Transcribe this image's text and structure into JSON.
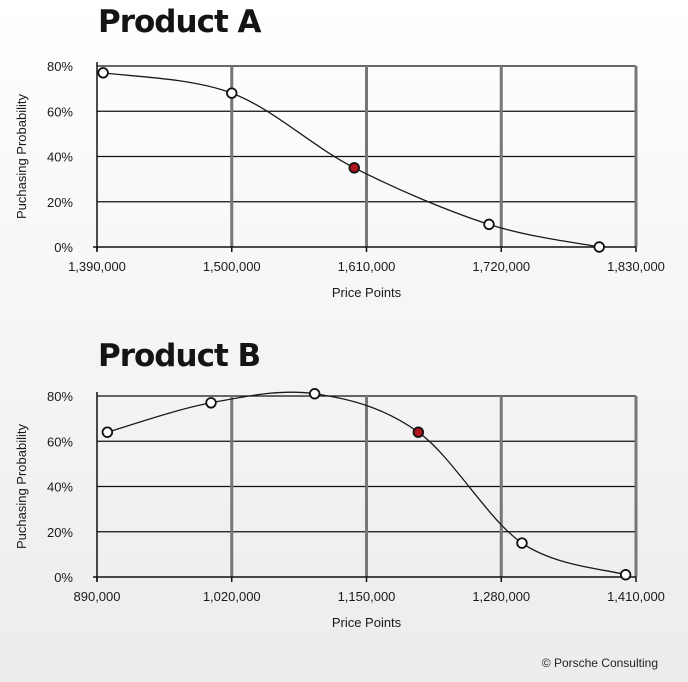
{
  "charts": [
    {
      "title": "Product A"
    },
    {
      "title": "Product B"
    }
  ],
  "chart_data": [
    {
      "type": "line",
      "title": "Product A",
      "xlabel": "Price Points",
      "ylabel": "Puchasing Probability",
      "x_ticks": [
        1390000,
        1500000,
        1610000,
        1720000,
        1830000
      ],
      "x_tick_labels": [
        "1,390,000",
        "1,500,000",
        "1,610,000",
        "1,720,000",
        "1,830,000"
      ],
      "y_ticks": [
        0,
        20,
        40,
        60,
        80
      ],
      "y_tick_labels": [
        "0%",
        "20%",
        "40%",
        "60%",
        "80%"
      ],
      "xlim": [
        1390000,
        1830000
      ],
      "ylim": [
        0,
        80
      ],
      "grid": true,
      "points": [
        {
          "x": 1395000,
          "y": 77,
          "highlight": false
        },
        {
          "x": 1500000,
          "y": 68,
          "highlight": false
        },
        {
          "x": 1600000,
          "y": 35,
          "highlight": true
        },
        {
          "x": 1710000,
          "y": 10,
          "highlight": false
        },
        {
          "x": 1800000,
          "y": 0,
          "highlight": false
        }
      ],
      "colors": {
        "line": "#1a1a1a",
        "marker_fill": "#ffffff",
        "highlight_fill": "#b0151f",
        "grid": "#777777"
      }
    },
    {
      "type": "line",
      "title": "Product B",
      "xlabel": "Price Points",
      "ylabel": "Puchasing Probability",
      "x_ticks": [
        890000,
        1020000,
        1150000,
        1280000,
        1410000
      ],
      "x_tick_labels": [
        "890,000",
        "1,020,000",
        "1,150,000",
        "1,280,000",
        "1,410,000"
      ],
      "y_ticks": [
        0,
        20,
        40,
        60,
        80
      ],
      "y_tick_labels": [
        "0%",
        "20%",
        "40%",
        "60%",
        "80%"
      ],
      "xlim": [
        890000,
        1410000
      ],
      "ylim": [
        0,
        80
      ],
      "grid": true,
      "points": [
        {
          "x": 900000,
          "y": 64,
          "highlight": false
        },
        {
          "x": 1000000,
          "y": 77,
          "highlight": false
        },
        {
          "x": 1100000,
          "y": 81,
          "highlight": false
        },
        {
          "x": 1200000,
          "y": 64,
          "highlight": true
        },
        {
          "x": 1300000,
          "y": 15,
          "highlight": false
        },
        {
          "x": 1400000,
          "y": 1,
          "highlight": false
        }
      ],
      "colors": {
        "line": "#1a1a1a",
        "marker_fill": "#ffffff",
        "highlight_fill": "#b0151f",
        "grid": "#777777"
      }
    }
  ],
  "footer": {
    "copyright": "© Porsche Consulting"
  }
}
